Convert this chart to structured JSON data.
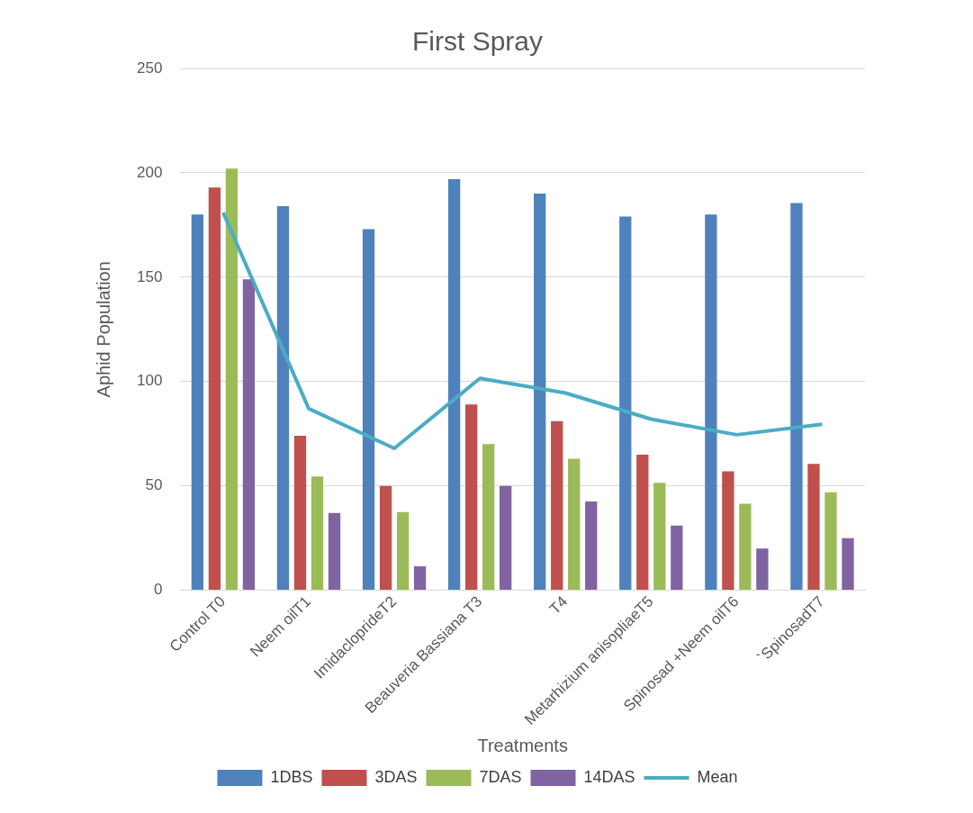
{
  "chart_data": {
    "type": "bar",
    "title": "First Spray",
    "xlabel": "Treatments",
    "ylabel": "Aphid Population",
    "categories": [
      "Control T0",
      "Neem oilT1",
      "ImidaclopridеT2",
      "Beauveria Bassiana T3",
      "T4",
      "Metarhizium anisopliaeT5",
      "Spinosad +Neem oilT6",
      "`SpinosadT7"
    ],
    "series": [
      {
        "name": "1DBS",
        "color": "#4f81bd",
        "values": [
          180,
          184,
          173,
          197,
          190,
          179,
          180,
          185.5
        ]
      },
      {
        "name": "3DAS",
        "color": "#c0504d",
        "values": [
          193,
          74,
          50,
          89,
          81,
          65,
          57,
          60.5
        ]
      },
      {
        "name": "7DAS",
        "color": "#9bbb59",
        "values": [
          202,
          54.5,
          37.5,
          70,
          63,
          51.5,
          41.5,
          47
        ]
      },
      {
        "name": "14DAS",
        "color": "#8064a2",
        "values": [
          149,
          37,
          11.5,
          50,
          42.5,
          31,
          20,
          25
        ]
      },
      {
        "name": "Mean",
        "type": "line",
        "color": "#4bacc6",
        "marker": "none",
        "values": [
          181,
          87,
          68,
          101.5,
          94.5,
          82,
          74.5,
          79.5
        ]
      }
    ],
    "ylim": [
      0,
      250
    ],
    "yticks": [
      0,
      50,
      100,
      150,
      200,
      250
    ],
    "grid": "y",
    "legend": "bottom"
  }
}
